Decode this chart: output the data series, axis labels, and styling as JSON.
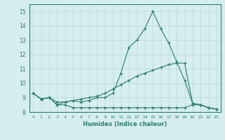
{
  "xlabel": "Humidex (Indice chaleur)",
  "x": [
    0,
    1,
    2,
    3,
    4,
    5,
    6,
    7,
    8,
    9,
    10,
    11,
    12,
    13,
    14,
    15,
    16,
    17,
    18,
    19,
    20,
    21,
    22,
    23
  ],
  "line1": [
    9.3,
    8.9,
    9.0,
    8.5,
    8.7,
    8.8,
    8.7,
    8.8,
    9.0,
    9.0,
    9.3,
    10.7,
    12.5,
    13.0,
    13.8,
    15.0,
    13.8,
    12.8,
    11.5,
    10.2,
    8.6,
    8.5,
    8.3,
    8.2
  ],
  "line2": [
    9.3,
    8.9,
    9.0,
    8.7,
    8.7,
    8.8,
    8.9,
    9.0,
    9.1,
    9.3,
    9.6,
    9.9,
    10.2,
    10.5,
    10.7,
    10.9,
    11.1,
    11.3,
    11.4,
    11.4,
    8.6,
    8.5,
    8.3,
    8.2
  ],
  "line3": [
    9.3,
    8.9,
    9.0,
    8.5,
    8.5,
    8.3,
    8.3,
    8.3,
    8.3,
    8.3,
    8.3,
    8.3,
    8.3,
    8.3,
    8.3,
    8.3,
    8.3,
    8.3,
    8.3,
    8.3,
    8.5,
    8.5,
    8.3,
    8.2
  ],
  "line_color": "#2d7d6d",
  "bg_color": "#d6eeee",
  "grid_color": "#b8d8d8",
  "ylim": [
    8.0,
    15.5
  ],
  "yticks": [
    8,
    9,
    10,
    11,
    12,
    13,
    14,
    15
  ],
  "xlim": [
    -0.5,
    23.5
  ]
}
